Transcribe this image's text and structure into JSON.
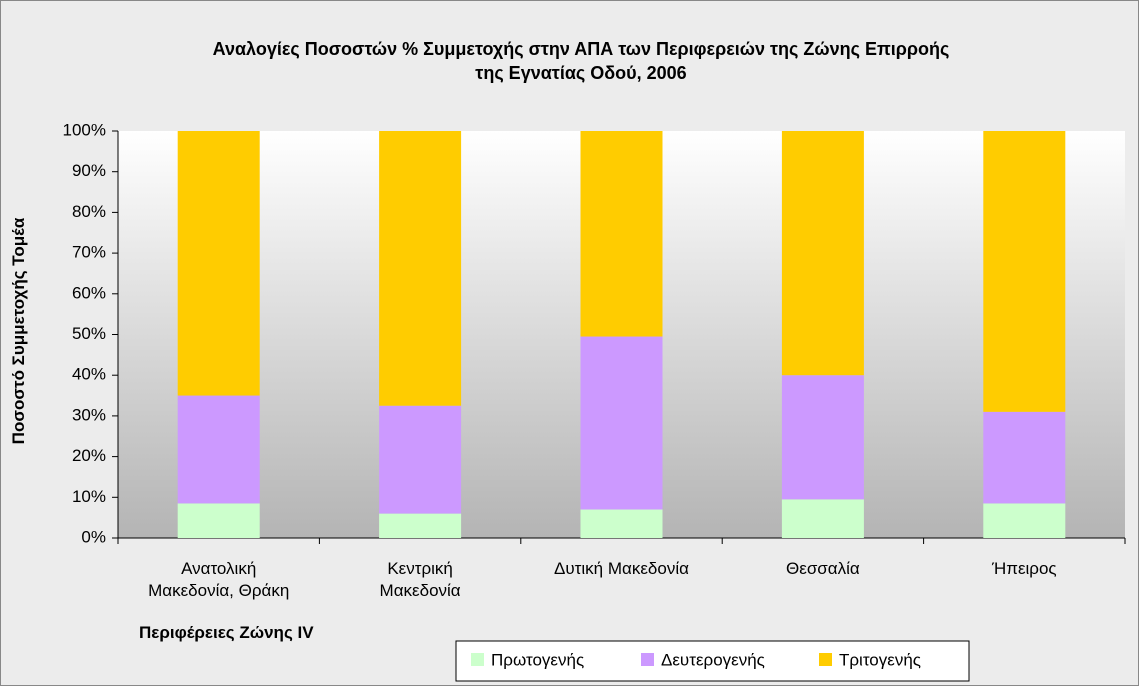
{
  "chart_data": {
    "type": "stacked_bar",
    "title": "Αναλογίες Ποσοστών % Συμμετοχής στην ΑΠΑ των Περιφερειών της Ζώνης Επιρροής\nτης Εγνατίας Οδού, 2006",
    "x_label": "Περιφέρειες Ζώνης IV",
    "y_label": "Ποσοστό Συμμετοχής Τομέα",
    "categories": [
      "Ανατολική\nΜακεδονία, Θράκη",
      "Κεντρική\nΜακεδονία",
      "Δυτική Μακεδονία",
      "Θεσσαλία",
      "Ήπειρος"
    ],
    "series": [
      {
        "name": "Πρωτογενής",
        "color": "#ccffcc",
        "values": [
          8.5,
          6,
          7,
          9.5,
          8.5
        ]
      },
      {
        "name": "Δευτερογενής",
        "color": "#cc99ff",
        "values": [
          26.5,
          26.5,
          42.5,
          30.5,
          22.5
        ]
      },
      {
        "name": "Τριτογενής",
        "color": "#ffcc00",
        "values": [
          65,
          67.5,
          50.5,
          60,
          69
        ]
      }
    ],
    "ylim": [
      0,
      100
    ],
    "yticks": [
      {
        "value": 0,
        "label": "0%"
      },
      {
        "value": 10,
        "label": "10%"
      },
      {
        "value": 20,
        "label": "20%"
      },
      {
        "value": 30,
        "label": "30%"
      },
      {
        "value": 40,
        "label": "40%"
      },
      {
        "value": 50,
        "label": "50%"
      },
      {
        "value": 60,
        "label": "60%"
      },
      {
        "value": 70,
        "label": "70%"
      },
      {
        "value": 80,
        "label": "80%"
      },
      {
        "value": 90,
        "label": "90%"
      },
      {
        "value": 100,
        "label": "100%"
      }
    ],
    "grid": false,
    "legend": "bottom"
  }
}
